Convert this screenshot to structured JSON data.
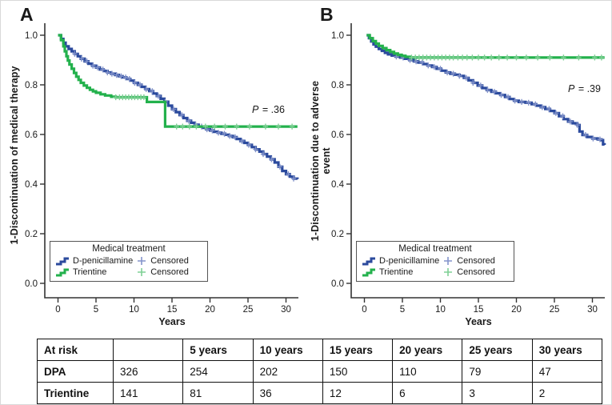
{
  "colors": {
    "dpa": "#2b4a9d",
    "trientine": "#23b14c",
    "dpa_censored": "#8494cb",
    "trientine_censored": "#7fd095",
    "axis": "#333333",
    "text": "#1a1a1a"
  },
  "panel_a": {
    "label": "A",
    "y_title": "1-Discontinuation of medical therapy",
    "x_title": "Years",
    "p_value": "P = .36",
    "legend": {
      "title": "Medical treatment",
      "series1": "D-penicillamine",
      "series2": "Trientine",
      "censored1": "Censored",
      "censored2": "Censored"
    }
  },
  "panel_b": {
    "label": "B",
    "y_title": "1-Discontinuation due to adverse event",
    "x_title": "Years",
    "p_value": "P = .39",
    "legend": {
      "title": "Medical treatment",
      "series1": "D-penicillamine",
      "series2": "Trientine",
      "censored1": "Censored",
      "censored2": "Censored"
    }
  },
  "chart_data": [
    {
      "type": "line",
      "subtype": "kaplan-meier-step",
      "panel": "A",
      "ylabel": "1-Discontinuation of medical therapy",
      "xlabel": "Years",
      "annotation": "P = .36",
      "xlim": [
        0,
        32
      ],
      "ylim": [
        0,
        1.0
      ],
      "xticks": [
        0,
        5,
        10,
        15,
        20,
        25,
        30
      ],
      "yticks": [
        0.0,
        0.2,
        0.4,
        0.6,
        0.8,
        1.0
      ],
      "legend_title": "Medical treatment",
      "legend_position": "inside-bottom-left",
      "series": [
        {
          "name": "D-penicillamine",
          "color": "#2b4a9d",
          "censor_color": "#8494cb",
          "points": [
            [
              0,
              1.0
            ],
            [
              0.4,
              0.985
            ],
            [
              0.7,
              0.97
            ],
            [
              1.0,
              0.955
            ],
            [
              1.4,
              0.945
            ],
            [
              1.8,
              0.935
            ],
            [
              2.2,
              0.925
            ],
            [
              2.6,
              0.915
            ],
            [
              3.0,
              0.905
            ],
            [
              3.5,
              0.895
            ],
            [
              4.0,
              0.885
            ],
            [
              4.5,
              0.877
            ],
            [
              5.0,
              0.87
            ],
            [
              5.5,
              0.862
            ],
            [
              6.0,
              0.856
            ],
            [
              6.5,
              0.85
            ],
            [
              7.0,
              0.845
            ],
            [
              7.5,
              0.84
            ],
            [
              8.0,
              0.835
            ],
            [
              8.5,
              0.83
            ],
            [
              9.0,
              0.824
            ],
            [
              9.5,
              0.817
            ],
            [
              10.0,
              0.808
            ],
            [
              10.5,
              0.8
            ],
            [
              11.0,
              0.792
            ],
            [
              11.5,
              0.783
            ],
            [
              12.0,
              0.775
            ],
            [
              12.5,
              0.765
            ],
            [
              13.0,
              0.755
            ],
            [
              13.5,
              0.744
            ],
            [
              14.0,
              0.732
            ],
            [
              14.5,
              0.716
            ],
            [
              15.0,
              0.702
            ],
            [
              15.5,
              0.69
            ],
            [
              16.0,
              0.678
            ],
            [
              16.5,
              0.666
            ],
            [
              17.0,
              0.655
            ],
            [
              17.5,
              0.647
            ],
            [
              18.0,
              0.639
            ],
            [
              18.5,
              0.632
            ],
            [
              19.0,
              0.627
            ],
            [
              19.5,
              0.621
            ],
            [
              20.0,
              0.616
            ],
            [
              20.5,
              0.611
            ],
            [
              21.0,
              0.607
            ],
            [
              21.5,
              0.603
            ],
            [
              22.0,
              0.599
            ],
            [
              22.5,
              0.594
            ],
            [
              23.0,
              0.589
            ],
            [
              23.5,
              0.582
            ],
            [
              24.0,
              0.574
            ],
            [
              24.5,
              0.566
            ],
            [
              25.0,
              0.558
            ],
            [
              25.5,
              0.549
            ],
            [
              26.0,
              0.54
            ],
            [
              26.5,
              0.531
            ],
            [
              27.0,
              0.521
            ],
            [
              27.5,
              0.511
            ],
            [
              28.0,
              0.5
            ],
            [
              28.5,
              0.487
            ],
            [
              29.0,
              0.47
            ],
            [
              29.5,
              0.453
            ],
            [
              30.0,
              0.44
            ],
            [
              30.5,
              0.43
            ],
            [
              31.0,
              0.422
            ],
            [
              31.5,
              0.42
            ]
          ],
          "censor_years": [
            2.2,
            3.1,
            3.8,
            4.6,
            5.2,
            5.9,
            6.5,
            7.1,
            7.7,
            8.3,
            8.9,
            9.4,
            10.1,
            10.8,
            11.6,
            12.4,
            13.2,
            14.1,
            15.2,
            16.3,
            17.2,
            18.1,
            18.9,
            19.6,
            20.3,
            21.1,
            21.9,
            22.6,
            23.3,
            24.2,
            25.1,
            26.0,
            27.0,
            28.1,
            29.2,
            30.3,
            31.0
          ]
        },
        {
          "name": "Trientine",
          "color": "#23b14c",
          "censor_color": "#7fd095",
          "points": [
            [
              0,
              1.0
            ],
            [
              0.4,
              0.98
            ],
            [
              0.7,
              0.955
            ],
            [
              0.9,
              0.935
            ],
            [
              1.1,
              0.915
            ],
            [
              1.3,
              0.898
            ],
            [
              1.5,
              0.882
            ],
            [
              1.8,
              0.865
            ],
            [
              2.1,
              0.848
            ],
            [
              2.4,
              0.833
            ],
            [
              2.7,
              0.82
            ],
            [
              3.0,
              0.808
            ],
            [
              3.4,
              0.797
            ],
            [
              3.8,
              0.788
            ],
            [
              4.2,
              0.78
            ],
            [
              4.6,
              0.774
            ],
            [
              5.0,
              0.768
            ],
            [
              5.6,
              0.762
            ],
            [
              6.2,
              0.757
            ],
            [
              7.0,
              0.752
            ],
            [
              7.6,
              0.75
            ],
            [
              11.5,
              0.75
            ],
            [
              11.7,
              0.731
            ],
            [
              13.9,
              0.731
            ],
            [
              14.1,
              0.632
            ],
            [
              31.5,
              0.632
            ]
          ],
          "censor_years": [
            7.6,
            8.1,
            8.5,
            8.9,
            9.3,
            9.7,
            10.1,
            10.5,
            10.9,
            11.3,
            15.6,
            16.4,
            17.3,
            18.2,
            19.4,
            20.6,
            22.0,
            23.5,
            25.2,
            27.3,
            29.0,
            30.8
          ]
        }
      ]
    },
    {
      "type": "line",
      "subtype": "kaplan-meier-step",
      "panel": "B",
      "ylabel": "1-Discontinuation due to adverse event",
      "xlabel": "Years",
      "annotation": "P = .39",
      "xlim": [
        0,
        32
      ],
      "ylim": [
        0,
        1.0
      ],
      "xticks": [
        0,
        5,
        10,
        15,
        20,
        25,
        30
      ],
      "yticks": [
        0.0,
        0.2,
        0.4,
        0.6,
        0.8,
        1.0
      ],
      "legend_title": "Medical treatment",
      "legend_position": "inside-bottom-left",
      "series": [
        {
          "name": "D-penicillamine",
          "color": "#2b4a9d",
          "censor_color": "#8494cb",
          "points": [
            [
              0.3,
              1.0
            ],
            [
              0.6,
              0.988
            ],
            [
              0.9,
              0.975
            ],
            [
              1.2,
              0.963
            ],
            [
              1.5,
              0.954
            ],
            [
              1.9,
              0.945
            ],
            [
              2.3,
              0.937
            ],
            [
              2.7,
              0.929
            ],
            [
              3.1,
              0.923
            ],
            [
              3.6,
              0.918
            ],
            [
              4.1,
              0.914
            ],
            [
              4.7,
              0.91
            ],
            [
              5.3,
              0.905
            ],
            [
              5.9,
              0.9
            ],
            [
              6.5,
              0.895
            ],
            [
              7.1,
              0.89
            ],
            [
              7.7,
              0.884
            ],
            [
              8.3,
              0.878
            ],
            [
              8.9,
              0.872
            ],
            [
              9.5,
              0.865
            ],
            [
              10.1,
              0.857
            ],
            [
              10.7,
              0.85
            ],
            [
              11.3,
              0.845
            ],
            [
              11.9,
              0.841
            ],
            [
              12.5,
              0.836
            ],
            [
              13.1,
              0.828
            ],
            [
              13.7,
              0.818
            ],
            [
              14.3,
              0.808
            ],
            [
              14.9,
              0.797
            ],
            [
              15.5,
              0.787
            ],
            [
              16.1,
              0.779
            ],
            [
              16.7,
              0.772
            ],
            [
              17.3,
              0.766
            ],
            [
              17.9,
              0.759
            ],
            [
              18.5,
              0.751
            ],
            [
              19.1,
              0.743
            ],
            [
              19.7,
              0.736
            ],
            [
              20.3,
              0.731
            ],
            [
              21.2,
              0.728
            ],
            [
              22.0,
              0.722
            ],
            [
              22.6,
              0.716
            ],
            [
              23.2,
              0.71
            ],
            [
              23.8,
              0.703
            ],
            [
              24.4,
              0.695
            ],
            [
              25.0,
              0.686
            ],
            [
              25.6,
              0.674
            ],
            [
              26.2,
              0.662
            ],
            [
              26.8,
              0.652
            ],
            [
              27.4,
              0.645
            ],
            [
              28.0,
              0.638
            ],
            [
              28.3,
              0.612
            ],
            [
              28.7,
              0.598
            ],
            [
              29.3,
              0.59
            ],
            [
              30.0,
              0.584
            ],
            [
              30.7,
              0.58
            ],
            [
              31.2,
              0.577
            ],
            [
              31.4,
              0.56
            ],
            [
              31.6,
              0.558
            ]
          ],
          "censor_years": [
            4.2,
            5.1,
            6.0,
            6.8,
            7.6,
            8.4,
            9.2,
            10.0,
            10.9,
            11.7,
            12.5,
            13.4,
            14.3,
            15.3,
            16.2,
            17.1,
            18.0,
            18.9,
            19.8,
            20.7,
            21.6,
            22.5,
            23.4,
            24.3,
            25.2,
            26.1,
            27.1,
            28.0,
            29.1,
            30.1,
            31.0
          ]
        },
        {
          "name": "Trientine",
          "color": "#23b14c",
          "censor_color": "#7fd095",
          "points": [
            [
              0.3,
              1.0
            ],
            [
              0.7,
              0.988
            ],
            [
              1.1,
              0.976
            ],
            [
              1.5,
              0.966
            ],
            [
              1.9,
              0.957
            ],
            [
              2.4,
              0.948
            ],
            [
              2.9,
              0.94
            ],
            [
              3.4,
              0.933
            ],
            [
              3.9,
              0.926
            ],
            [
              4.4,
              0.921
            ],
            [
              4.9,
              0.917
            ],
            [
              5.4,
              0.913
            ],
            [
              6.0,
              0.91
            ],
            [
              31.6,
              0.91
            ]
          ],
          "censor_years": [
            6.2,
            6.7,
            7.2,
            7.7,
            8.2,
            8.7,
            9.2,
            9.7,
            10.2,
            10.7,
            11.2,
            11.7,
            12.3,
            12.9,
            13.5,
            14.2,
            15.0,
            15.8,
            16.7,
            17.7,
            18.8,
            20.0,
            21.3,
            22.8,
            24.4,
            26.2,
            28.2,
            30.3,
            31.2
          ]
        }
      ]
    }
  ],
  "risk_table": {
    "headers": [
      "At risk",
      "",
      "5 years",
      "10 years",
      "15 years",
      "20 years",
      "25 years",
      "30 years"
    ],
    "rows": [
      [
        "DPA",
        "326",
        "254",
        "202",
        "150",
        "110",
        "79",
        "47"
      ],
      [
        "Trientine",
        "141",
        "81",
        "36",
        "12",
        "6",
        "3",
        "2"
      ]
    ]
  }
}
